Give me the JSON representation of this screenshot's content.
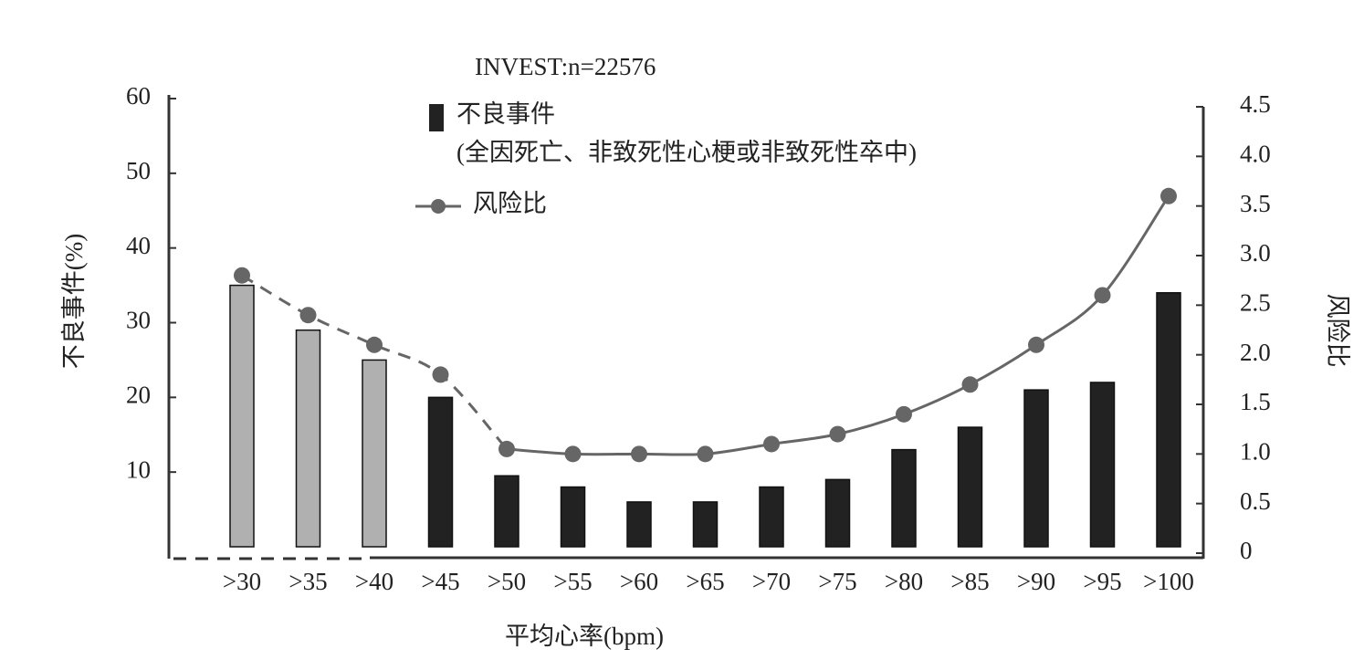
{
  "chart_data": {
    "type": "bar_line",
    "subtitle": "INVEST:n=22576",
    "x_label": "平均心率(bpm)",
    "y_label": "不良事件(%)",
    "y2_label": "风险比",
    "legend_note": "(全因死亡、非致死性心梗或非致死性卒中)",
    "categories": [
      ">30",
      ">35",
      ">40",
      ">45",
      ">50",
      ">55",
      ">60",
      ">65",
      ">70",
      ">75",
      ">80",
      ">85",
      ">90",
      ">95",
      ">100"
    ],
    "series": [
      {
        "name": "不良事件",
        "type": "bar",
        "color": "#222222",
        "colors": [
          "#b0b0b0",
          "#b0b0b0",
          "#b0b0b0",
          "#222222",
          "#222222",
          "#222222",
          "#222222",
          "#222222",
          "#222222",
          "#222222",
          "#222222",
          "#222222",
          "#222222",
          "#222222",
          "#222222"
        ],
        "values": [
          35,
          29,
          25,
          20,
          9.5,
          8,
          6,
          6,
          8,
          9,
          13,
          16,
          21,
          22,
          34
        ]
      },
      {
        "name": "风险比",
        "type": "line",
        "axis": "y2",
        "color": "#666666",
        "values": [
          2.8,
          2.4,
          2.1,
          1.8,
          1.05,
          1.0,
          1.0,
          1.0,
          1.1,
          1.2,
          1.4,
          1.7,
          2.1,
          2.6,
          3.6
        ]
      }
    ],
    "ylim": [
      0,
      60
    ],
    "yticks": [
      10,
      20,
      30,
      40,
      50,
      60
    ],
    "y2lim": [
      0,
      4.5
    ],
    "y2ticks": [
      0,
      0.5,
      {
        "value": 1,
        "label": "1.0"
      },
      1.5,
      {
        "value": 2,
        "label": "2.0"
      },
      2.5,
      {
        "value": 3,
        "label": "3.0"
      },
      3.5,
      {
        "value": 4,
        "label": "4.0"
      },
      4.5
    ]
  }
}
